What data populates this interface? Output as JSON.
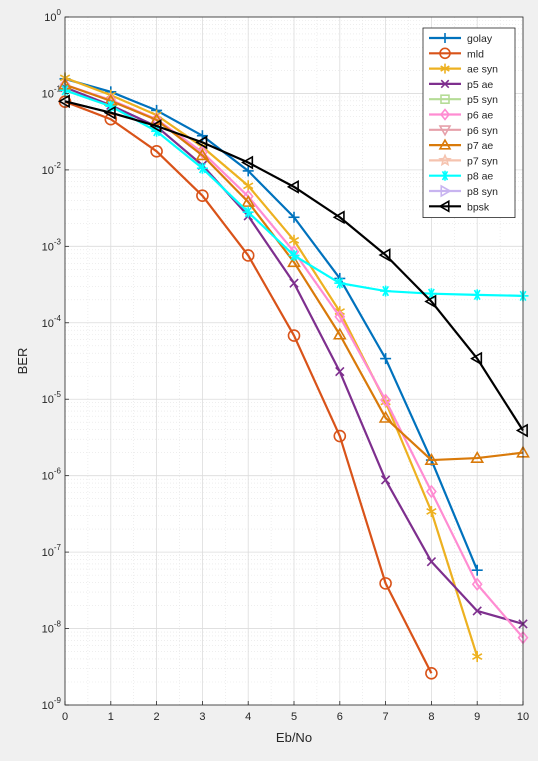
{
  "chart_data": {
    "type": "line",
    "xlabel": "Eb/No",
    "ylabel": "BER",
    "xlim": [
      0,
      10
    ],
    "ylim": [
      1e-09,
      1
    ],
    "yscale": "log",
    "grid": true,
    "minor_grid": true,
    "legend_placement": "top-right",
    "xticks": [
      0,
      1,
      2,
      3,
      4,
      5,
      6,
      7,
      8,
      9,
      10
    ],
    "yticks": [
      {
        "exp": -9,
        "base": "10",
        "power": "-9"
      },
      {
        "exp": -8,
        "base": "10",
        "power": "-8"
      },
      {
        "exp": -7,
        "base": "10",
        "power": "-7"
      },
      {
        "exp": -6,
        "base": "10",
        "power": "-6"
      },
      {
        "exp": -5,
        "base": "10",
        "power": "-5"
      },
      {
        "exp": -4,
        "base": "10",
        "power": "-4"
      },
      {
        "exp": -3,
        "base": "10",
        "power": "-3"
      },
      {
        "exp": -2,
        "base": "10",
        "power": "-2"
      },
      {
        "exp": -1,
        "base": "10",
        "power": "-1"
      },
      {
        "exp": 0,
        "base": "10",
        "power": "0"
      }
    ],
    "series": [
      {
        "name": "golay",
        "color": "#0072BD",
        "marker": "plus",
        "x": [
          0,
          1,
          2,
          3,
          4,
          5,
          6,
          7,
          8,
          9
        ],
        "y": [
          0.155,
          0.105,
          0.06,
          0.028,
          0.0097,
          0.0024,
          0.00038,
          3.4e-05,
          1.6e-06,
          5.8e-08
        ]
      },
      {
        "name": "mld",
        "color": "#D95319",
        "marker": "circle",
        "x": [
          0,
          1,
          2,
          3,
          4,
          5,
          6,
          7,
          8
        ],
        "y": [
          0.078,
          0.046,
          0.0175,
          0.0046,
          0.00076,
          6.8e-05,
          3.3e-06,
          3.9e-08,
          2.6e-09
        ]
      },
      {
        "name": "ae syn",
        "color": "#EDB120",
        "marker": "asterisk",
        "x": [
          0,
          1,
          2,
          3,
          4,
          5,
          6,
          7,
          8,
          9
        ],
        "y": [
          0.16,
          0.095,
          0.052,
          0.02,
          0.0062,
          0.0012,
          0.00014,
          9.2e-06,
          3.4e-07,
          4.3e-09
        ]
      },
      {
        "name": "p5 ae",
        "color": "#7E2F8E",
        "marker": "x",
        "x": [
          0,
          1,
          2,
          3,
          4,
          5,
          6,
          7,
          8,
          9,
          10
        ],
        "y": [
          0.12,
          0.07,
          0.037,
          0.0115,
          0.0025,
          0.00033,
          2.3e-05,
          8.8e-07,
          7.5e-08,
          1.7e-08,
          1.15e-08
        ]
      },
      {
        "name": "p5 syn",
        "color": "#B5DC96",
        "marker": "square",
        "x": [],
        "y": []
      },
      {
        "name": "p6 ae",
        "color": "#FF8CD2",
        "marker": "diamond",
        "x": [
          0,
          1,
          2,
          3,
          4,
          5,
          6,
          7,
          8,
          9,
          10
        ],
        "y": [
          0.13,
          0.082,
          0.046,
          0.017,
          0.0045,
          0.00085,
          0.00012,
          9.7e-06,
          6.2e-07,
          3.8e-08,
          7.6e-09
        ]
      },
      {
        "name": "p6 syn",
        "color": "#E6A0AA",
        "marker": "triangle-down",
        "x": [],
        "y": []
      },
      {
        "name": "p7 ae",
        "color": "#D97A0A",
        "marker": "triangle-up",
        "x": [
          0,
          1,
          2,
          3,
          4,
          5,
          6,
          7,
          8,
          9,
          10
        ],
        "y": [
          0.13,
          0.08,
          0.045,
          0.0155,
          0.0038,
          0.00062,
          7e-05,
          5.7e-06,
          1.6e-06,
          1.7e-06,
          2e-06
        ]
      },
      {
        "name": "p7 syn",
        "color": "#F5C3AF",
        "marker": "pentagram",
        "x": [],
        "y": []
      },
      {
        "name": "p8 ae",
        "color": "#00FFFF",
        "marker": "hexagram",
        "x": [
          0,
          1,
          2,
          3,
          4,
          5,
          6,
          7,
          8,
          9,
          10
        ],
        "y": [
          0.11,
          0.068,
          0.032,
          0.0105,
          0.0028,
          0.00076,
          0.00033,
          0.00026,
          0.00024,
          0.000232,
          0.000225
        ]
      },
      {
        "name": "p8 syn",
        "color": "#C8B4F0",
        "marker": "triangle-right",
        "x": [],
        "y": []
      },
      {
        "name": "bpsk",
        "color": "#000000",
        "marker": "triangle-left",
        "x": [
          0,
          1,
          2,
          3,
          4,
          5,
          6,
          7,
          8,
          9,
          10
        ],
        "y": [
          0.079,
          0.056,
          0.0375,
          0.0229,
          0.0125,
          0.006,
          0.0024,
          0.00077,
          0.00019,
          3.4e-05,
          3.9e-06
        ]
      }
    ]
  }
}
